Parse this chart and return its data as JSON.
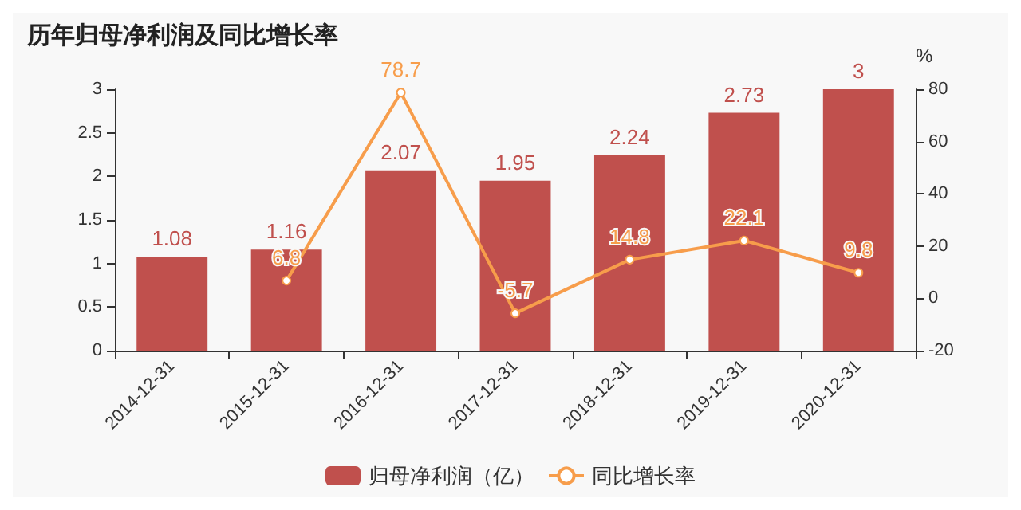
{
  "chart_data": {
    "type": "bar",
    "title": "历年归母净利润及同比增长率",
    "categories": [
      "2014-12-31",
      "2015-12-31",
      "2016-12-31",
      "2017-12-31",
      "2018-12-31",
      "2019-12-31",
      "2020-12-31"
    ],
    "series": [
      {
        "name": "归母净利润（亿）",
        "color": "#c0504d",
        "values": [
          1.08,
          1.16,
          2.07,
          1.95,
          2.24,
          2.73,
          3
        ]
      },
      {
        "name": "同比增长率",
        "type": "line",
        "axis": "y2",
        "color": "#f79d4b",
        "values": [
          null,
          6.8,
          78.7,
          -5.7,
          14.8,
          22.1,
          9.8
        ]
      }
    ],
    "ylim": [
      0,
      3
    ],
    "yticks": [
      0,
      0.5,
      1,
      1.5,
      2,
      2.5,
      3
    ],
    "y2lim": [
      -20,
      80
    ],
    "y2ticks": [
      -20,
      0,
      20,
      40,
      60,
      80
    ],
    "y2label": "%",
    "data_labels": true,
    "legend": "bottom",
    "marker": "circle",
    "grid": false
  }
}
